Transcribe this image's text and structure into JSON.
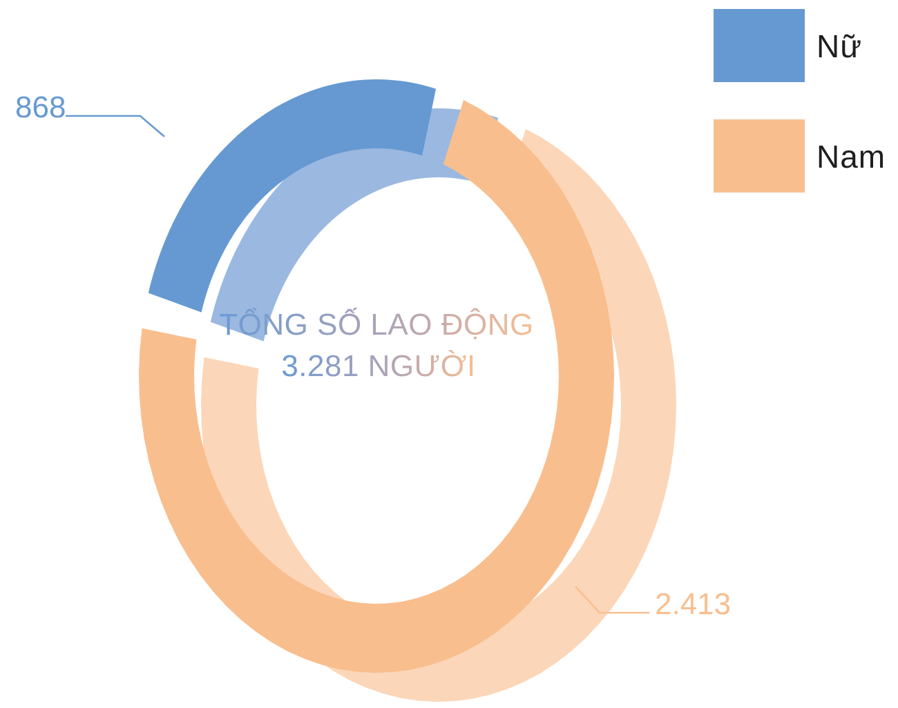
{
  "chart_data": {
    "type": "pie",
    "style": "3d-donut",
    "center_text": {
      "line1": "TỔNG SỐ LAO ĐỘNG",
      "line2": "3.281 NGƯỜI"
    },
    "slices": [
      {
        "name": "Nữ",
        "value": 868,
        "label": "868",
        "color": "#6699D1",
        "color_light": "#9BB8E0"
      },
      {
        "name": "Nam",
        "value": 2413,
        "label": "2.413",
        "color": "#F9BE8E",
        "color_light": "#FCD6B8"
      }
    ],
    "total": 3281,
    "legend": {
      "position": "top-right"
    }
  }
}
